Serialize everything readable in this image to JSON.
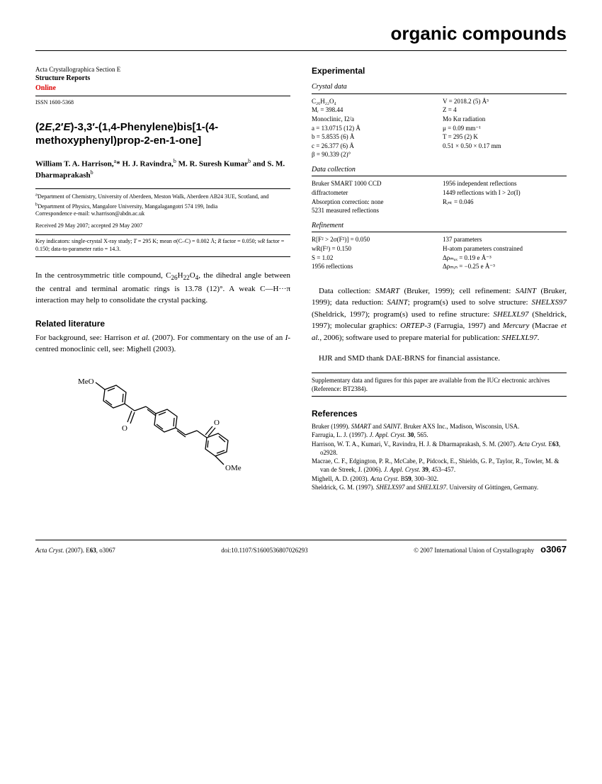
{
  "header": {
    "section_title": "organic compounds"
  },
  "journal": {
    "name": "Acta Crystallographica Section E",
    "sub": "Structure Reports",
    "online": "Online",
    "issn": "ISSN 1600-5368"
  },
  "article": {
    "title_html": "(2<i>E</i>,2′<i>E</i>)-3,3′-(1,4-Phenylene)bis[1-(4-methoxyphenyl)prop-2-en-1-one]",
    "authors_html": "William T. A. Harrison,<sup>a</sup>* H. J. Ravindra,<sup>b</sup> M. R. Suresh Kumar<sup>b</sup> and S. M. Dharmaprakash<sup>b</sup>",
    "affil_html": "<sup>a</sup>Department of Chemistry, University of Aberdeen, Meston Walk, Aberdeen AB24 3UE, Scotland, and <sup>b</sup>Department of Physics, Mangalore University, Mangalagangotri 574 199, India",
    "corr": "Correspondence e-mail: w.harrison@abdn.ac.uk",
    "dates": "Received 29 May 2007; accepted 29 May 2007",
    "keyind_html": "Key indicators: single-crystal X-ray study; <i>T</i> = 295 K; mean σ(C–C) = 0.002 Å; <i>R</i> factor = 0.050; <i>wR</i> factor = 0.150; data-to-parameter ratio = 14.3.",
    "abstract_html": "In the centrosymmetric title compound, C<sub>26</sub>H<sub>22</sub>O<sub>4</sub>, the dihedral angle between the central and terminal aromatic rings is 13.78 (12)°. A weak C—H···π interaction may help to consolidate the crystal packing."
  },
  "related": {
    "heading": "Related literature",
    "text_html": "For background, see: Harrison <i>et al.</i> (2007). For commentary on the use of an <i>I</i>-centred monoclinic cell, see: Mighell (2003)."
  },
  "experimental": {
    "heading": "Experimental",
    "crystal": {
      "sub": "Crystal data",
      "left": [
        "C₂₆H₂₂O₄",
        "Mᵣ = 398.44",
        "Monoclinic, I2/a",
        "a = 13.0715 (12) Å",
        "b = 5.8535 (6) Å",
        "c = 26.377 (6) Å",
        "β = 90.339 (2)°"
      ],
      "right": [
        "V = 2018.2 (5) Å³",
        "Z = 4",
        "Mo Kα radiation",
        "μ = 0.09 mm⁻¹",
        "T = 295 (2) K",
        "0.51 × 0.50 × 0.17 mm"
      ]
    },
    "collection": {
      "sub": "Data collection",
      "left": [
        "Bruker SMART 1000 CCD",
        "  diffractometer",
        "Absorption correction: none",
        "5231 measured reflections"
      ],
      "right": [
        "1956 independent reflections",
        "1449 reflections with I > 2σ(I)",
        "Rᵢₙₜ = 0.046"
      ]
    },
    "refinement": {
      "sub": "Refinement",
      "left": [
        "R[F² > 2σ(F²)] = 0.050",
        "wR(F²) = 0.150",
        "S = 1.02",
        "1956 reflections"
      ],
      "right": [
        "137 parameters",
        "H-atom parameters constrained",
        "Δρₘₐₓ = 0.19 e Å⁻³",
        "Δρₘᵢₙ = −0.25 e Å⁻³"
      ]
    }
  },
  "software_html": "Data collection: <i>SMART</i> (Bruker, 1999); cell refinement: <i>SAINT</i> (Bruker, 1999); data reduction: <i>SAINT</i>; program(s) used to solve structure: <i>SHELXS97</i> (Sheldrick, 1997); program(s) used to refine structure: <i>SHELXL97</i> (Sheldrick, 1997); molecular graphics: <i>ORTEP-3</i> (Farrugia, 1997) and <i>Mercury</i> (Macrae <i>et al.</i>, 2006); software used to prepare material for publication: <i>SHELXL97</i>.",
  "ack": "HJR and SMD thank DAE-BRNS for financial assistance.",
  "supp": "Supplementary data and figures for this paper are available from the IUCr electronic archives (Reference: BT2384).",
  "refs": {
    "heading": "References",
    "items": [
      "Bruker (1999). <i>SMART</i> and <i>SAINT</i>. Bruker AXS Inc., Madison, Wisconsin, USA.",
      "Farrugia, L. J. (1997). <i>J. Appl. Cryst.</i> <b>30</b>, 565.",
      "Harrison, W. T. A., Kumari, V., Ravindra, H. J. & Dharmaprakash, S. M. (2007). <i>Acta Cryst.</i> E<b>63</b>, o2928.",
      "Macrae, C. F., Edgington, P. R., McCabe, P., Pidcock, E., Shields, G. P., Taylor, R., Towler, M. & van de Streek, J. (2006). <i>J. Appl. Cryst.</i> <b>39</b>, 453–457.",
      "Mighell, A. D. (2003). <i>Acta Cryst.</i> B<b>59</b>, 300–302.",
      "Sheldrick, G. M. (1997). <i>SHELXS97</i> and <i>SHELXL97</i>. University of Göttingen, Germany."
    ]
  },
  "footer": {
    "left_html": "<i>Acta Cryst.</i> (2007). E<b>63</b>, o3067",
    "center": "doi:10.1107/S1600536807026293",
    "right": "© 2007 International Union of Crystallography",
    "page": "o3067"
  },
  "structure_labels": {
    "meo1": "MeO",
    "meo2": "OMe",
    "o1": "O",
    "o2": "O"
  }
}
